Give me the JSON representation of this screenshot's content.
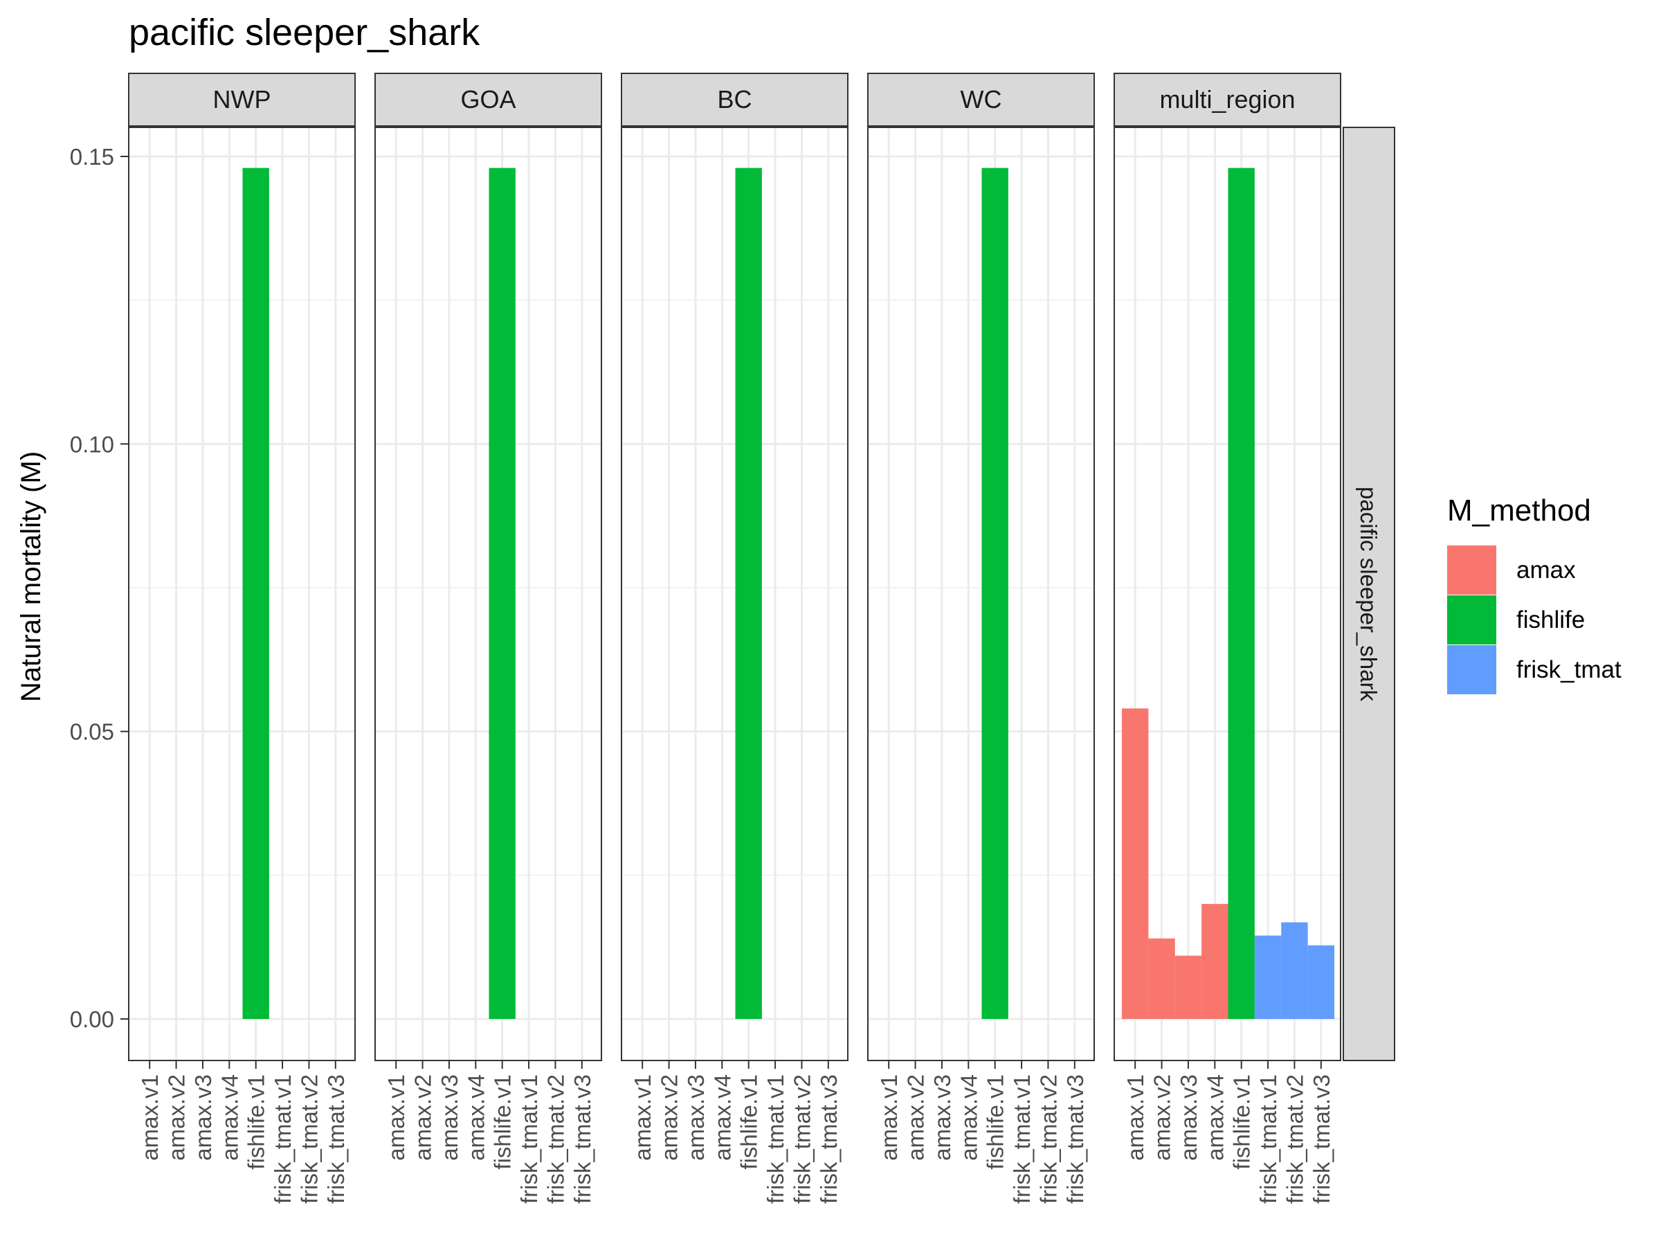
{
  "chart_data": {
    "type": "bar",
    "title": "pacific sleeper_shark",
    "ylabel": "Natural mortality (M)",
    "xlabel": "",
    "ylim": [
      -0.007,
      0.16
    ],
    "y_ticks": [
      0.0,
      0.05,
      0.1,
      0.15
    ],
    "y_tick_labels": [
      "0.00",
      "0.05",
      "0.10",
      "0.15"
    ],
    "row_strip": "pacific sleeper_shark",
    "categories": [
      "amax.v1",
      "amax.v2",
      "amax.v3",
      "amax.v4",
      "fishlife.v1",
      "frisk_tmat.v1",
      "frisk_tmat.v2",
      "frisk_tmat.v3"
    ],
    "category_method": [
      "amax",
      "amax",
      "amax",
      "amax",
      "fishlife",
      "frisk_tmat",
      "frisk_tmat",
      "frisk_tmat"
    ],
    "legend": {
      "title": "M_method",
      "position": "right",
      "items": [
        {
          "label": "amax",
          "color": "#F8766D"
        },
        {
          "label": "fishlife",
          "color": "#00BA38"
        },
        {
          "label": "frisk_tmat",
          "color": "#619CFF"
        }
      ]
    },
    "panels": [
      {
        "name": "NWP",
        "values": [
          null,
          null,
          null,
          null,
          0.148,
          null,
          null,
          null
        ]
      },
      {
        "name": "GOA",
        "values": [
          null,
          null,
          null,
          null,
          0.148,
          null,
          null,
          null
        ]
      },
      {
        "name": "BC",
        "values": [
          null,
          null,
          null,
          null,
          0.148,
          null,
          null,
          null
        ]
      },
      {
        "name": "WC",
        "values": [
          null,
          null,
          null,
          null,
          0.148,
          null,
          null,
          null
        ]
      },
      {
        "name": "multi_region",
        "values": [
          0.054,
          0.014,
          0.011,
          0.02,
          0.148,
          0.0145,
          0.0168,
          0.0128
        ]
      }
    ],
    "grid": true
  }
}
